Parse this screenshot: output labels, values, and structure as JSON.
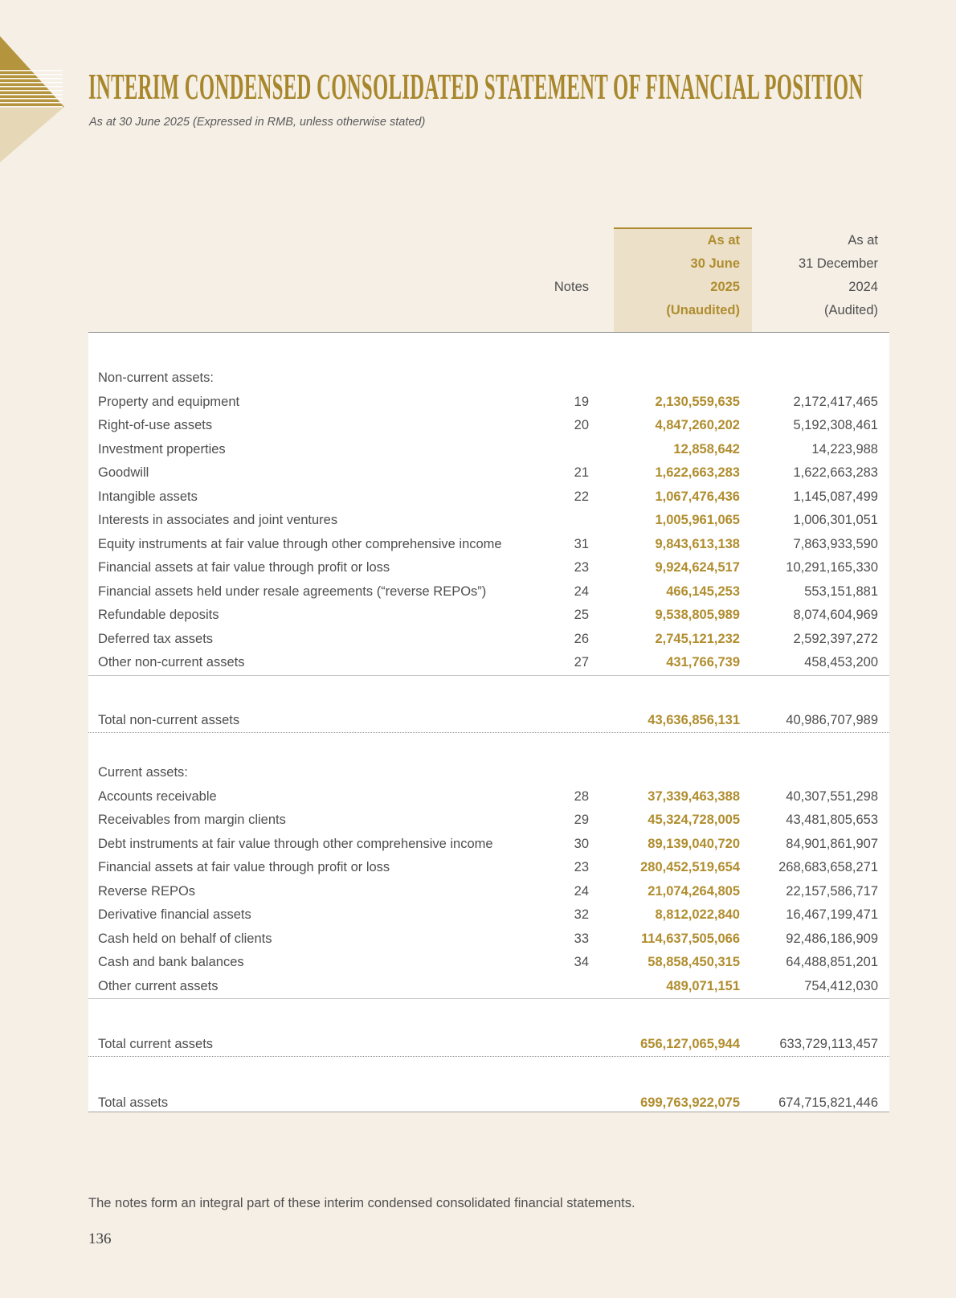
{
  "page": {
    "title": "INTERIM CONDENSED CONSOLIDATED STATEMENT OF FINANCIAL POSITION",
    "subtitle": "As at 30 June 2025 (Expressed in RMB, unless otherwise stated)",
    "footnote": "The notes form an integral part of these interim condensed consolidated financial statements.",
    "page_number": "136"
  },
  "colors": {
    "page_background": "#f5efe6",
    "accent_gold": "#a8872c",
    "highlight_column_background": "#ece0c9",
    "highlight_value_text": "#b08d2e",
    "body_text": "#4f4f4f"
  },
  "table": {
    "header": {
      "notes_label": "Notes",
      "current_column_lines": [
        "As at",
        "30 June",
        "2025",
        "(Unaudited)"
      ],
      "prior_column_lines": [
        "As at",
        "31 December",
        "2024",
        "(Audited)"
      ]
    },
    "sections": [
      {
        "title": "Non-current assets:",
        "rows": [
          {
            "label": "Property and equipment",
            "note": "19",
            "current": "2,130,559,635",
            "prior": "2,172,417,465"
          },
          {
            "label": "Right-of-use assets",
            "note": "20",
            "current": "4,847,260,202",
            "prior": "5,192,308,461"
          },
          {
            "label": "Investment properties",
            "note": "",
            "current": "12,858,642",
            "prior": "14,223,988"
          },
          {
            "label": "Goodwill",
            "note": "21",
            "current": "1,622,663,283",
            "prior": "1,622,663,283"
          },
          {
            "label": "Intangible assets",
            "note": "22",
            "current": "1,067,476,436",
            "prior": "1,145,087,499"
          },
          {
            "label": "Interests in associates and joint ventures",
            "note": "",
            "current": "1,005,961,065",
            "prior": "1,006,301,051"
          },
          {
            "label": "Equity instruments at fair value through other comprehensive income",
            "note": "31",
            "current": "9,843,613,138",
            "prior": "7,863,933,590"
          },
          {
            "label": "Financial assets at fair value through profit or loss",
            "note": "23",
            "current": "9,924,624,517",
            "prior": "10,291,165,330"
          },
          {
            "label": "Financial assets held under resale agreements (“reverse REPOs”)",
            "note": "24",
            "current": "466,145,253",
            "prior": "553,151,881"
          },
          {
            "label": "Refundable deposits",
            "note": "25",
            "current": "9,538,805,989",
            "prior": "8,074,604,969"
          },
          {
            "label": "Deferred tax assets",
            "note": "26",
            "current": "2,745,121,232",
            "prior": "2,592,397,272"
          },
          {
            "label": "Other non-current assets",
            "note": "27",
            "current": "431,766,739",
            "prior": "458,453,200"
          }
        ],
        "total": {
          "label": "Total non-current assets",
          "current": "43,636,856,131",
          "prior": "40,986,707,989"
        }
      },
      {
        "title": "Current assets:",
        "rows": [
          {
            "label": "Accounts receivable",
            "note": "28",
            "current": "37,339,463,388",
            "prior": "40,307,551,298"
          },
          {
            "label": "Receivables from margin clients",
            "note": "29",
            "current": "45,324,728,005",
            "prior": "43,481,805,653"
          },
          {
            "label": "Debt instruments at fair value through other comprehensive income",
            "note": "30",
            "current": "89,139,040,720",
            "prior": "84,901,861,907"
          },
          {
            "label": "Financial assets at fair value through profit or loss",
            "note": "23",
            "current": "280,452,519,654",
            "prior": "268,683,658,271"
          },
          {
            "label": "Reverse REPOs",
            "note": "24",
            "current": "21,074,264,805",
            "prior": "22,157,586,717"
          },
          {
            "label": "Derivative financial assets",
            "note": "32",
            "current": "8,812,022,840",
            "prior": "16,467,199,471"
          },
          {
            "label": "Cash held on behalf of clients",
            "note": "33",
            "current": "114,637,505,066",
            "prior": "92,486,186,909"
          },
          {
            "label": "Cash and bank balances",
            "note": "34",
            "current": "58,858,450,315",
            "prior": "64,488,851,201"
          },
          {
            "label": "Other current assets",
            "note": "",
            "current": "489,071,151",
            "prior": "754,412,030"
          }
        ],
        "total": {
          "label": "Total current assets",
          "current": "656,127,065,944",
          "prior": "633,729,113,457"
        }
      }
    ],
    "grand_total": {
      "label": "Total assets",
      "current": "699,763,922,075",
      "prior": "674,715,821,446"
    }
  }
}
